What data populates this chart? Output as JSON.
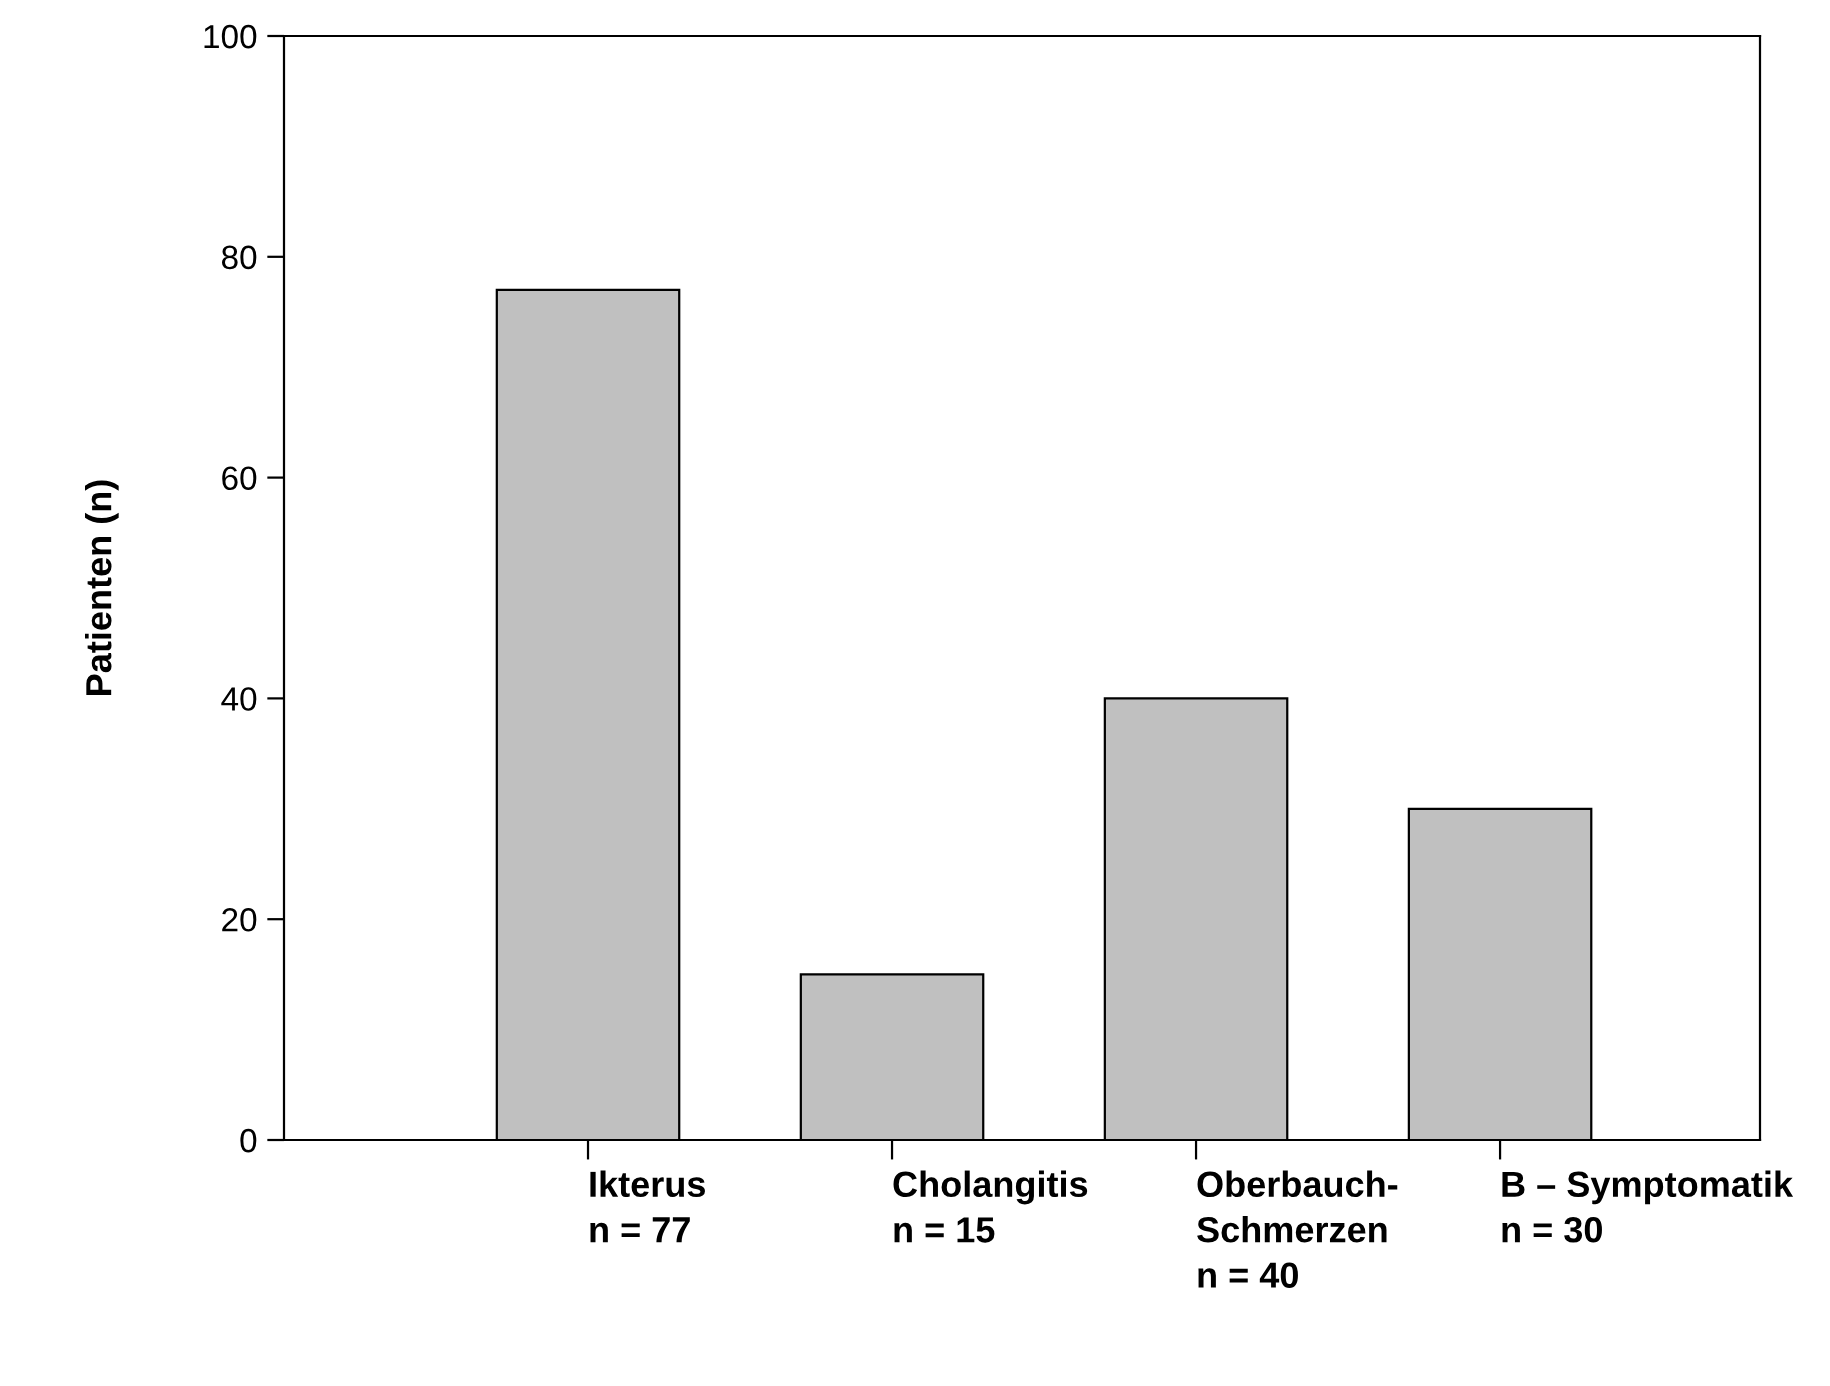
{
  "chart_data": {
    "type": "bar",
    "ylabel": "Patienten (n)",
    "categories": [
      "Ikterus\nn = 77",
      "Cholangitis\nn = 15",
      "Oberbauch-\nSchmerzen\nn = 40",
      "B – Symptomatik\nn = 30"
    ],
    "values": [
      77,
      15,
      40,
      30
    ],
    "color": "#c0c0c0",
    "ylim": [
      0,
      100
    ],
    "yticks": [
      0,
      20,
      40,
      60,
      80,
      100
    ],
    "grid": false,
    "legend": false
  }
}
